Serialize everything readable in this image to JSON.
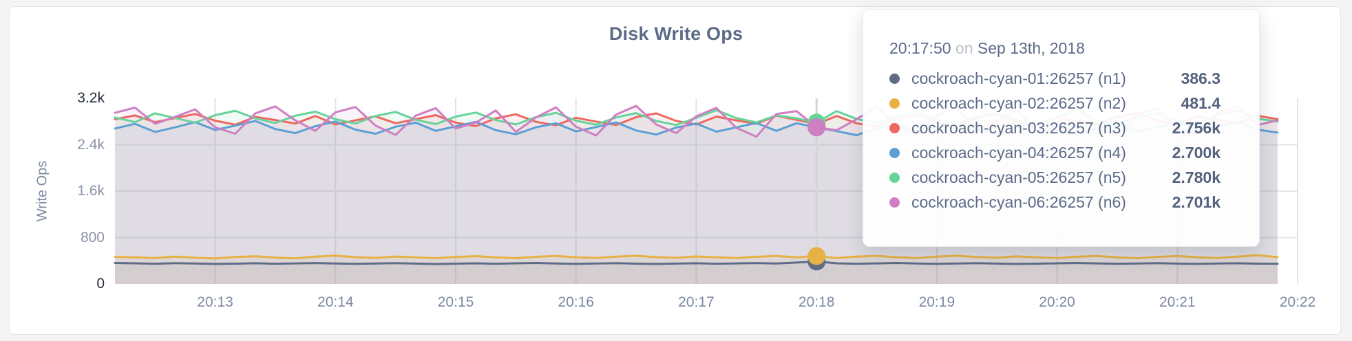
{
  "page": {
    "background": "#f4f4f5"
  },
  "card": {
    "background": "#ffffff",
    "border": "#e4e4e6"
  },
  "chart": {
    "title": "Disk Write Ops",
    "y_axis_label": "Write Ops"
  },
  "tooltip": {
    "time": "20:17:50",
    "conjunction": "on",
    "date": "Sep 13th, 2018",
    "rows": [
      {
        "label": "cockroach-cyan-01:26257 (n1)",
        "value": "386.3",
        "color": "#5F6C87"
      },
      {
        "label": "cockroach-cyan-02:26257 (n2)",
        "value": "481.4",
        "color": "#E7B144"
      },
      {
        "label": "cockroach-cyan-03:26257 (n3)",
        "value": "2.756k",
        "color": "#EE6860"
      },
      {
        "label": "cockroach-cyan-04:26257 (n4)",
        "value": "2.700k",
        "color": "#5C9FD4"
      },
      {
        "label": "cockroach-cyan-05:26257 (n5)",
        "value": "2.780k",
        "color": "#66D39A"
      },
      {
        "label": "cockroach-cyan-06:26257 (n6)",
        "value": "2.701k",
        "color": "#D07EC3"
      }
    ]
  },
  "chart_data": {
    "type": "line",
    "title": "Disk Write Ops",
    "xlabel": "",
    "ylabel": "Write Ops",
    "ylim": [
      0,
      3200
    ],
    "grid": true,
    "x_start": "20:12:10",
    "x_interval_seconds": 10,
    "x_domain": [
      "20:12:10",
      "20:22:00"
    ],
    "x_ticks": [
      "20:13",
      "20:14",
      "20:15",
      "20:16",
      "20:17",
      "20:18",
      "20:19",
      "20:20",
      "20:21",
      "20:22"
    ],
    "y_ticks": [
      {
        "label": "3.2k",
        "value": 3200,
        "strong": true,
        "grid": false
      },
      {
        "label": "2.4k",
        "value": 2400,
        "strong": false,
        "grid": true
      },
      {
        "label": "1.6k",
        "value": 1600,
        "strong": false,
        "grid": true
      },
      {
        "label": "800",
        "value": 800,
        "strong": false,
        "grid": true
      },
      {
        "label": "0",
        "value": 0,
        "strong": true,
        "grid": false
      }
    ],
    "hover": {
      "index": 35,
      "time": "20:17:50",
      "date": "Sep 13th, 2018"
    },
    "series": [
      {
        "name": "cockroach-cyan-01:26257 (n1)",
        "color": "#5F6C87",
        "hover_value_label": "386.3",
        "values": [
          362,
          355,
          348,
          358,
          352,
          345,
          350,
          357,
          349,
          354,
          360,
          352,
          346,
          353,
          359,
          351,
          344,
          350,
          356,
          349,
          355,
          361,
          353,
          347,
          352,
          358,
          350,
          345,
          351,
          357,
          349,
          354,
          360,
          352,
          368,
          386.3,
          356,
          349,
          354,
          361,
          353,
          347,
          352,
          358,
          351,
          345,
          350,
          356,
          362,
          354,
          348,
          353,
          359,
          351,
          346,
          352,
          357,
          350,
          348
        ]
      },
      {
        "name": "cockroach-cyan-02:26257 (n2)",
        "color": "#E7B144",
        "hover_value_label": "481.4",
        "values": [
          468,
          458,
          446,
          472,
          452,
          440,
          465,
          478,
          455,
          442,
          470,
          488,
          462,
          449,
          473,
          458,
          444,
          466,
          480,
          457,
          445,
          468,
          484,
          460,
          447,
          471,
          486,
          462,
          450,
          474,
          459,
          446,
          468,
          482,
          460,
          481.4,
          447,
          470,
          485,
          461,
          448,
          472,
          487,
          463,
          451,
          475,
          460,
          446,
          469,
          483,
          458,
          445,
          467,
          481,
          459,
          447,
          470,
          495,
          462
        ]
      },
      {
        "name": "cockroach-cyan-03:26257 (n3)",
        "color": "#EE6860",
        "hover_value_label": "2.756k",
        "values": [
          2840,
          2905,
          2790,
          2860,
          2930,
          2815,
          2745,
          2880,
          2825,
          2765,
          2895,
          2750,
          2820,
          2890,
          2770,
          2840,
          2910,
          2780,
          2720,
          2855,
          2925,
          2795,
          2735,
          2865,
          2800,
          2740,
          2875,
          2940,
          2810,
          2750,
          2885,
          2820,
          2760,
          2900,
          2830,
          2756,
          2895,
          2770,
          2710,
          2845,
          2915,
          2785,
          2725,
          2860,
          2930,
          2800,
          2745,
          2870,
          2805,
          2750,
          2880,
          2945,
          2815,
          2755,
          2890,
          2825,
          2770,
          2900,
          2840
        ]
      },
      {
        "name": "cockroach-cyan-04:26257 (n4)",
        "color": "#5C9FD4",
        "hover_value_label": "2.700k",
        "values": [
          2680,
          2760,
          2620,
          2700,
          2790,
          2655,
          2730,
          2810,
          2670,
          2600,
          2720,
          2800,
          2660,
          2590,
          2710,
          2780,
          2640,
          2715,
          2795,
          2650,
          2580,
          2700,
          2770,
          2630,
          2705,
          2785,
          2645,
          2575,
          2695,
          2765,
          2625,
          2700,
          2775,
          2640,
          2770,
          2700,
          2635,
          2565,
          2690,
          2760,
          2620,
          2695,
          2775,
          2655,
          2585,
          2705,
          2780,
          2645,
          2570,
          2690,
          2765,
          2630,
          2710,
          2790,
          2650,
          2720,
          2800,
          2660,
          2610
        ]
      },
      {
        "name": "cockroach-cyan-05:26257 (n5)",
        "color": "#66D39A",
        "hover_value_label": "2.780k",
        "values": [
          2870,
          2790,
          2940,
          2860,
          2780,
          2910,
          2985,
          2855,
          2775,
          2900,
          2970,
          2840,
          2765,
          2895,
          2965,
          2830,
          2755,
          2885,
          2955,
          2825,
          2750,
          2875,
          2950,
          2815,
          2745,
          2870,
          2945,
          2810,
          2740,
          2865,
          2995,
          2860,
          2785,
          2905,
          2855,
          2780,
          2980,
          2845,
          2770,
          2895,
          2965,
          2835,
          2760,
          2890,
          2960,
          2830,
          2755,
          2880,
          2995,
          2820,
          2745,
          2875,
          2945,
          2815,
          2740,
          2915,
          2985,
          2850,
          2800
        ]
      },
      {
        "name": "cockroach-cyan-06:26257 (n6)",
        "color": "#D07EC3",
        "hover_value_label": "2.701k",
        "values": [
          2950,
          3040,
          2760,
          2880,
          3010,
          2700,
          2590,
          2940,
          3060,
          2820,
          2640,
          2960,
          3050,
          2730,
          2570,
          2900,
          3030,
          2680,
          2780,
          2990,
          2620,
          2870,
          3045,
          2710,
          2560,
          2920,
          3070,
          2750,
          2600,
          2890,
          3035,
          2690,
          2540,
          2930,
          2980,
          2701,
          2650,
          2840,
          3055,
          2720,
          2580,
          2910,
          3040,
          2670,
          2800,
          3000,
          2630,
          2760,
          3080,
          2700,
          2550,
          2940,
          3025,
          2685,
          2590,
          2950,
          3060,
          2740,
          2820
        ]
      }
    ]
  }
}
